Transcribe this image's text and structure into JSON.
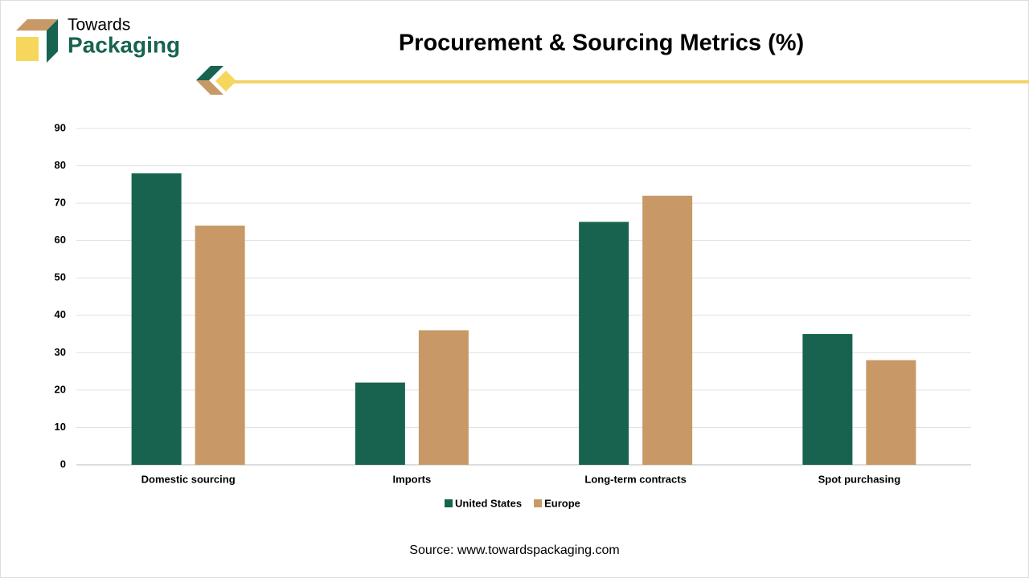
{
  "brand": {
    "line1": "Towards",
    "line2": "Packaging"
  },
  "source": "Source: www.towardspackaging.com",
  "chart_data": {
    "type": "bar",
    "title": "Procurement & Sourcing Metrics (%)",
    "categories": [
      "Domestic sourcing",
      "Imports",
      "Long-term contracts",
      "Spot purchasing"
    ],
    "series": [
      {
        "name": "United States",
        "color": "#17634f",
        "values": [
          78,
          22,
          65,
          35
        ]
      },
      {
        "name": "Europe",
        "color": "#c89966",
        "values": [
          64,
          36,
          72,
          28
        ]
      }
    ],
    "ylim": [
      0,
      90
    ],
    "yticks": [
      0,
      10,
      20,
      30,
      40,
      50,
      60,
      70,
      80,
      90
    ],
    "grid": true,
    "legend": "bottom"
  }
}
